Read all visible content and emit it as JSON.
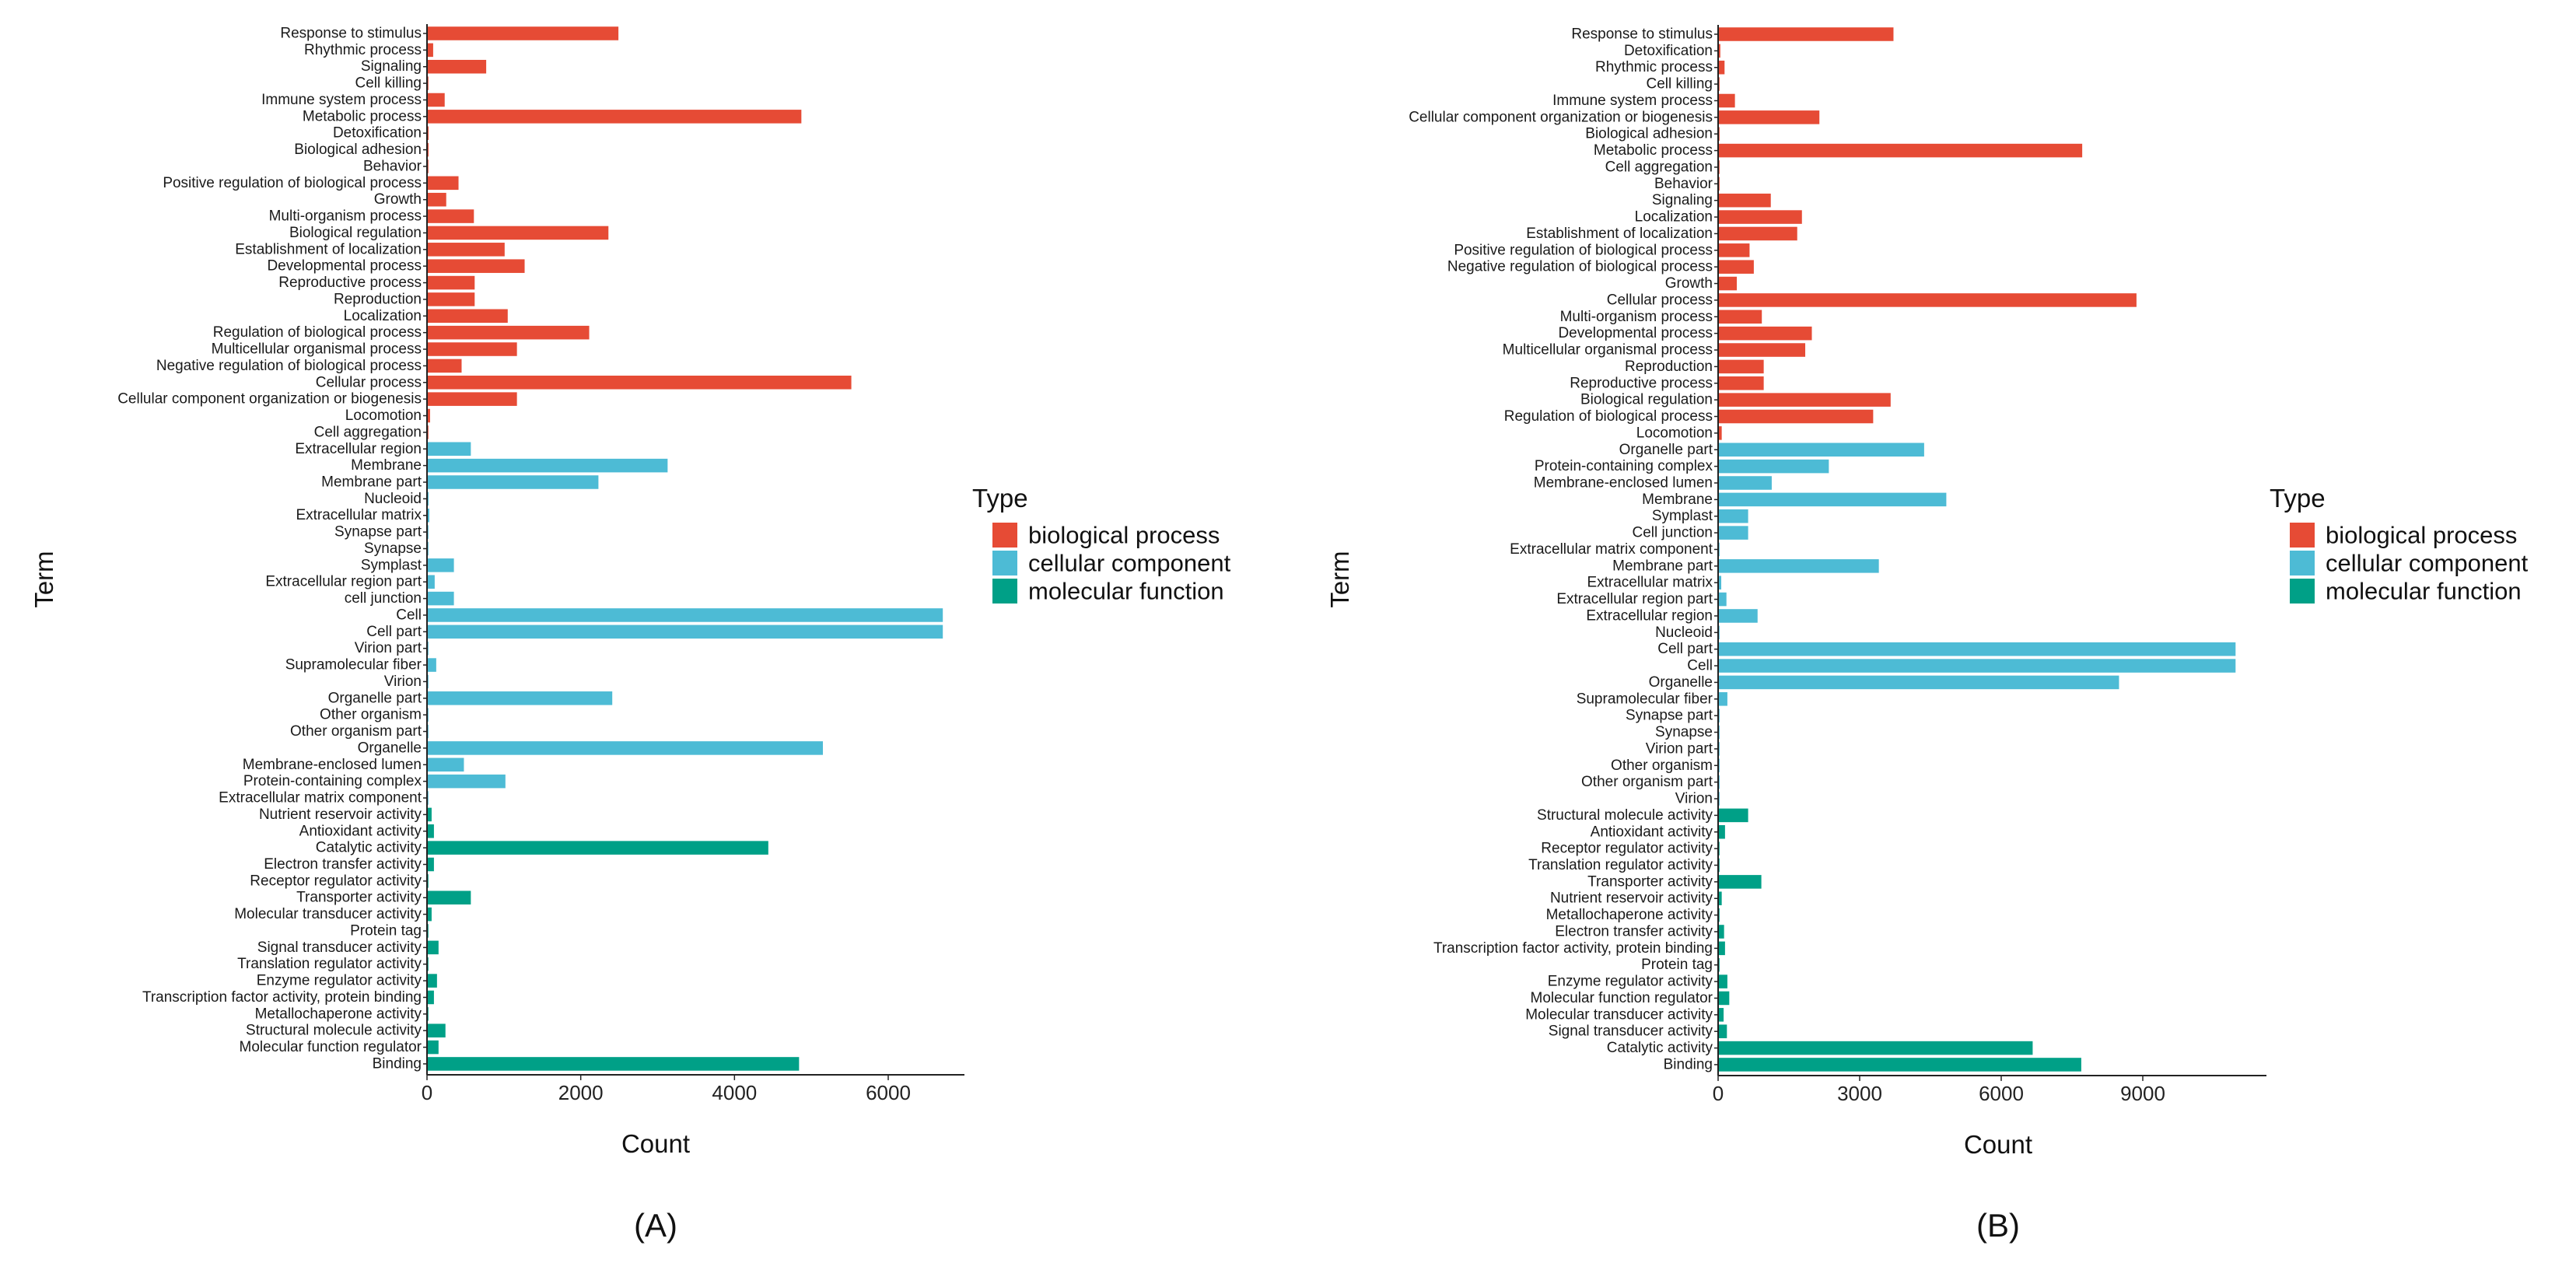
{
  "colors": {
    "bp": "#e64b35",
    "cc": "#4dbbd5",
    "mf": "#00a087"
  },
  "legend_title": "Type",
  "legend_labels": {
    "bp": "biological process",
    "cc": "cellular component",
    "mf": "molecular function"
  },
  "chart_data": [
    {
      "type": "bar",
      "orientation": "horizontal",
      "panel_label": "(A)",
      "xlabel": "Count",
      "ylabel": "Term",
      "xlim": [
        0,
        7000
      ],
      "xticks": [
        0,
        2000,
        4000,
        6000
      ],
      "legend": "right",
      "bars": [
        {
          "term": "Response to stimulus",
          "type": "bp",
          "value": 2480
        },
        {
          "term": "Rhythmic process",
          "type": "bp",
          "value": 70
        },
        {
          "term": "Signaling",
          "type": "bp",
          "value": 760
        },
        {
          "term": "Cell killing",
          "type": "bp",
          "value": 5
        },
        {
          "term": "Immune system process",
          "type": "bp",
          "value": 220
        },
        {
          "term": "Metabolic process",
          "type": "bp",
          "value": 4860
        },
        {
          "term": "Detoxification",
          "type": "bp",
          "value": 10
        },
        {
          "term": "Biological adhesion",
          "type": "bp",
          "value": 10
        },
        {
          "term": "Behavior",
          "type": "bp",
          "value": 5
        },
        {
          "term": "Positive regulation of biological process",
          "type": "bp",
          "value": 400
        },
        {
          "term": "Growth",
          "type": "bp",
          "value": 240
        },
        {
          "term": "Multi-organism process",
          "type": "bp",
          "value": 600
        },
        {
          "term": "Biological regulation",
          "type": "bp",
          "value": 2350
        },
        {
          "term": "Establishment of localization",
          "type": "bp",
          "value": 1000
        },
        {
          "term": "Developmental process",
          "type": "bp",
          "value": 1260
        },
        {
          "term": "Reproductive process",
          "type": "bp",
          "value": 610
        },
        {
          "term": "Reproduction",
          "type": "bp",
          "value": 610
        },
        {
          "term": "Localization",
          "type": "bp",
          "value": 1040
        },
        {
          "term": "Regulation of biological process",
          "type": "bp",
          "value": 2100
        },
        {
          "term": "Multicellular organismal process",
          "type": "bp",
          "value": 1160
        },
        {
          "term": "Negative regulation of biological process",
          "type": "bp",
          "value": 440
        },
        {
          "term": "Cellular process",
          "type": "bp",
          "value": 5510
        },
        {
          "term": "Cellular component organization or biogenesis",
          "type": "bp",
          "value": 1160
        },
        {
          "term": "Locomotion",
          "type": "bp",
          "value": 30
        },
        {
          "term": "Cell aggregation",
          "type": "bp",
          "value": 3
        },
        {
          "term": "Extracellular region",
          "type": "cc",
          "value": 560
        },
        {
          "term": "Membrane",
          "type": "cc",
          "value": 3120
        },
        {
          "term": "Membrane part",
          "type": "cc",
          "value": 2220
        },
        {
          "term": "Nucleoid",
          "type": "cc",
          "value": 10
        },
        {
          "term": "Extracellular matrix",
          "type": "cc",
          "value": 20
        },
        {
          "term": "Synapse part",
          "type": "cc",
          "value": 3
        },
        {
          "term": "Synapse",
          "type": "cc",
          "value": 3
        },
        {
          "term": "Symplast",
          "type": "cc",
          "value": 340
        },
        {
          "term": "Extracellular region part",
          "type": "cc",
          "value": 90
        },
        {
          "term": "cell junction",
          "type": "cc",
          "value": 340
        },
        {
          "term": "Cell",
          "type": "cc",
          "value": 6700
        },
        {
          "term": "Cell part",
          "type": "cc",
          "value": 6700
        },
        {
          "term": "Virion part",
          "type": "cc",
          "value": 3
        },
        {
          "term": "Supramolecular fiber",
          "type": "cc",
          "value": 110
        },
        {
          "term": "Virion",
          "type": "cc",
          "value": 3
        },
        {
          "term": "Organelle part",
          "type": "cc",
          "value": 2400
        },
        {
          "term": "Other organism",
          "type": "cc",
          "value": 3
        },
        {
          "term": "Other organism part",
          "type": "cc",
          "value": 3
        },
        {
          "term": "Organelle",
          "type": "cc",
          "value": 5140
        },
        {
          "term": "Membrane-enclosed lumen",
          "type": "cc",
          "value": 470
        },
        {
          "term": "Protein-containing complex",
          "type": "cc",
          "value": 1010
        },
        {
          "term": "Extracellular matrix component",
          "type": "cc",
          "value": 3
        },
        {
          "term": "Nutrient reservoir activity",
          "type": "mf",
          "value": 50
        },
        {
          "term": "Antioxidant activity",
          "type": "mf",
          "value": 80
        },
        {
          "term": "Catalytic activity",
          "type": "mf",
          "value": 4430
        },
        {
          "term": "Electron transfer activity",
          "type": "mf",
          "value": 80
        },
        {
          "term": "Receptor regulator activity",
          "type": "mf",
          "value": 3
        },
        {
          "term": "Transporter activity",
          "type": "mf",
          "value": 560
        },
        {
          "term": "Molecular transducer activity",
          "type": "mf",
          "value": 50
        },
        {
          "term": "Protein tag",
          "type": "mf",
          "value": 3
        },
        {
          "term": "Signal transducer activity",
          "type": "mf",
          "value": 140
        },
        {
          "term": "Translation regulator activity",
          "type": "mf",
          "value": 5
        },
        {
          "term": "Enzyme regulator activity",
          "type": "mf",
          "value": 120
        },
        {
          "term": "Transcription factor activity, protein binding",
          "type": "mf",
          "value": 80
        },
        {
          "term": "Metallochaperone activity",
          "type": "mf",
          "value": 3
        },
        {
          "term": "Structural molecule activity",
          "type": "mf",
          "value": 230
        },
        {
          "term": "Molecular function regulator",
          "type": "mf",
          "value": 140
        },
        {
          "term": "Binding",
          "type": "mf",
          "value": 4830
        }
      ]
    },
    {
      "type": "bar",
      "orientation": "horizontal",
      "panel_label": "(B)",
      "xlabel": "Count",
      "ylabel": "Term",
      "xlim": [
        0,
        11500
      ],
      "xticks": [
        0,
        3000,
        6000,
        9000
      ],
      "legend": "right",
      "bars": [
        {
          "term": "Response to stimulus",
          "type": "bp",
          "value": 3700
        },
        {
          "term": "Detoxification",
          "type": "bp",
          "value": 30
        },
        {
          "term": "Rhythmic process",
          "type": "bp",
          "value": 120
        },
        {
          "term": "Cell killing",
          "type": "bp",
          "value": 5
        },
        {
          "term": "Immune system process",
          "type": "bp",
          "value": 340
        },
        {
          "term": "Cellular component organization or biogenesis",
          "type": "bp",
          "value": 2130
        },
        {
          "term": "Biological adhesion",
          "type": "bp",
          "value": 10
        },
        {
          "term": "Metabolic process",
          "type": "bp",
          "value": 7700
        },
        {
          "term": "Cell aggregation",
          "type": "bp",
          "value": 3
        },
        {
          "term": "Behavior",
          "type": "bp",
          "value": 10
        },
        {
          "term": "Signaling",
          "type": "bp",
          "value": 1100
        },
        {
          "term": "Localization",
          "type": "bp",
          "value": 1760
        },
        {
          "term": "Establishment of localization",
          "type": "bp",
          "value": 1660
        },
        {
          "term": "Positive regulation of biological process",
          "type": "bp",
          "value": 650
        },
        {
          "term": "Negative regulation of biological process",
          "type": "bp",
          "value": 740
        },
        {
          "term": "Growth",
          "type": "bp",
          "value": 380
        },
        {
          "term": "Cellular process",
          "type": "bp",
          "value": 8850
        },
        {
          "term": "Multi-organism process",
          "type": "bp",
          "value": 910
        },
        {
          "term": "Developmental process",
          "type": "bp",
          "value": 1970
        },
        {
          "term": "Multicellular organismal process",
          "type": "bp",
          "value": 1830
        },
        {
          "term": "Reproduction",
          "type": "bp",
          "value": 950
        },
        {
          "term": "Reproductive process",
          "type": "bp",
          "value": 950
        },
        {
          "term": "Biological regulation",
          "type": "bp",
          "value": 3640
        },
        {
          "term": "Regulation of biological process",
          "type": "bp",
          "value": 3270
        },
        {
          "term": "Locomotion",
          "type": "bp",
          "value": 60
        },
        {
          "term": "Organelle part",
          "type": "cc",
          "value": 4350
        },
        {
          "term": "Protein-containing complex",
          "type": "cc",
          "value": 2330
        },
        {
          "term": "Membrane-enclosed lumen",
          "type": "cc",
          "value": 1120
        },
        {
          "term": "Membrane",
          "type": "cc",
          "value": 4820
        },
        {
          "term": "Symplast",
          "type": "cc",
          "value": 620
        },
        {
          "term": "Cell junction",
          "type": "cc",
          "value": 620
        },
        {
          "term": "Extracellular matrix component",
          "type": "cc",
          "value": 3
        },
        {
          "term": "Membrane part",
          "type": "cc",
          "value": 3390
        },
        {
          "term": "Extracellular matrix",
          "type": "cc",
          "value": 50
        },
        {
          "term": "Extracellular region part",
          "type": "cc",
          "value": 160
        },
        {
          "term": "Extracellular region",
          "type": "cc",
          "value": 820
        },
        {
          "term": "Nucleoid",
          "type": "cc",
          "value": 10
        },
        {
          "term": "Cell part",
          "type": "cc",
          "value": 10950
        },
        {
          "term": "Cell",
          "type": "cc",
          "value": 10950
        },
        {
          "term": "Organelle",
          "type": "cc",
          "value": 8480
        },
        {
          "term": "Supramolecular fiber",
          "type": "cc",
          "value": 180
        },
        {
          "term": "Synapse part",
          "type": "cc",
          "value": 3
        },
        {
          "term": "Synapse",
          "type": "cc",
          "value": 3
        },
        {
          "term": "Virion part",
          "type": "cc",
          "value": 3
        },
        {
          "term": "Other organism",
          "type": "cc",
          "value": 3
        },
        {
          "term": "Other organism part",
          "type": "cc",
          "value": 3
        },
        {
          "term": "Virion",
          "type": "cc",
          "value": 3
        },
        {
          "term": "Structural molecule activity",
          "type": "mf",
          "value": 620
        },
        {
          "term": "Antioxidant activity",
          "type": "mf",
          "value": 130
        },
        {
          "term": "Receptor regulator activity",
          "type": "mf",
          "value": 5
        },
        {
          "term": "Translation regulator activity",
          "type": "mf",
          "value": 10
        },
        {
          "term": "Transporter activity",
          "type": "mf",
          "value": 900
        },
        {
          "term": "Nutrient reservoir activity",
          "type": "mf",
          "value": 60
        },
        {
          "term": "Metallochaperone activity",
          "type": "mf",
          "value": 3
        },
        {
          "term": "Electron transfer activity",
          "type": "mf",
          "value": 110
        },
        {
          "term": "Transcription factor activity, protein binding",
          "type": "mf",
          "value": 130
        },
        {
          "term": "Protein tag",
          "type": "mf",
          "value": 3
        },
        {
          "term": "Enzyme regulator activity",
          "type": "mf",
          "value": 180
        },
        {
          "term": "Molecular function regulator",
          "type": "mf",
          "value": 220
        },
        {
          "term": "Molecular transducer activity",
          "type": "mf",
          "value": 100
        },
        {
          "term": "Signal transducer activity",
          "type": "mf",
          "value": 170
        },
        {
          "term": "Catalytic activity",
          "type": "mf",
          "value": 6650
        },
        {
          "term": "Binding",
          "type": "mf",
          "value": 7680
        }
      ]
    }
  ]
}
